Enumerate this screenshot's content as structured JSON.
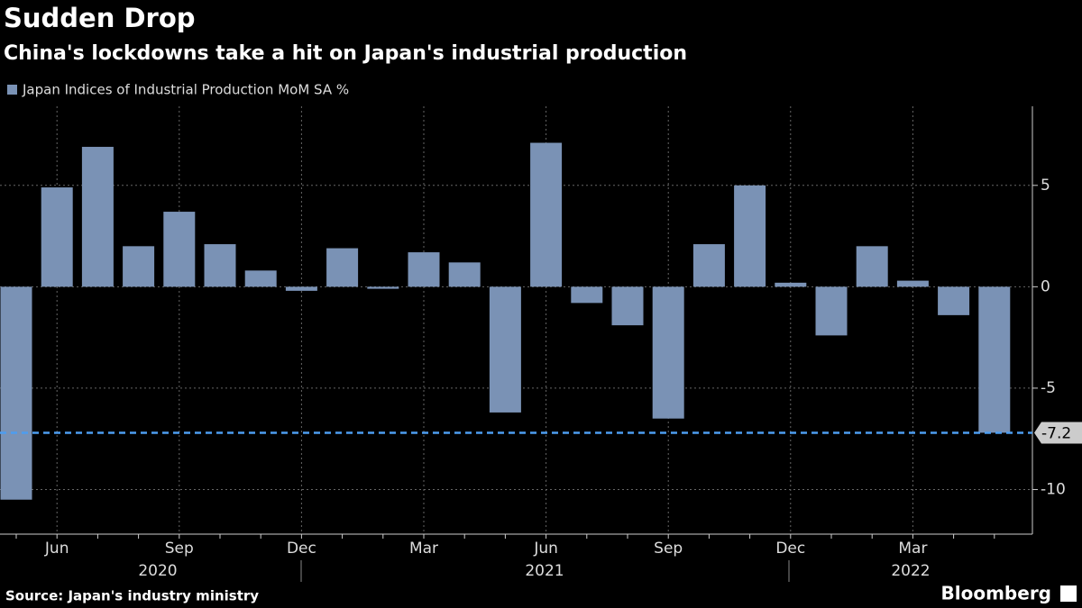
{
  "chart_data": {
    "type": "bar",
    "title": "Sudden Drop",
    "subtitle": "China's lockdowns take a hit on Japan's industrial production",
    "source": "Source: Japan's industry ministry",
    "brand": "Bloomberg",
    "categories": [
      null,
      "Jun",
      null,
      null,
      "Sep",
      null,
      null,
      "Dec",
      null,
      null,
      "Mar",
      null,
      null,
      "Jun",
      null,
      null,
      "Sep",
      null,
      null,
      "Dec",
      null,
      null,
      "Mar",
      null,
      null
    ],
    "year_labels": [
      "2020",
      "2021",
      "2022"
    ],
    "series": [
      {
        "name": "Japan Indices of Industrial Production MoM SA %",
        "color": "#7a92b5",
        "values": [
          -10.5,
          4.9,
          6.9,
          2.0,
          3.7,
          2.1,
          0.8,
          -0.2,
          1.9,
          -0.1,
          1.7,
          1.2,
          -6.2,
          7.1,
          -0.8,
          -1.9,
          -6.5,
          2.1,
          5.0,
          0.2,
          -2.4,
          2.0,
          0.3,
          -1.4,
          -7.2
        ]
      }
    ],
    "reference_line": {
      "value": -7.2,
      "color": "#4d9df0"
    },
    "ylim": [
      -12.2,
      8.9
    ],
    "yticks": [
      -10,
      -5,
      0,
      5
    ],
    "grid": true
  }
}
